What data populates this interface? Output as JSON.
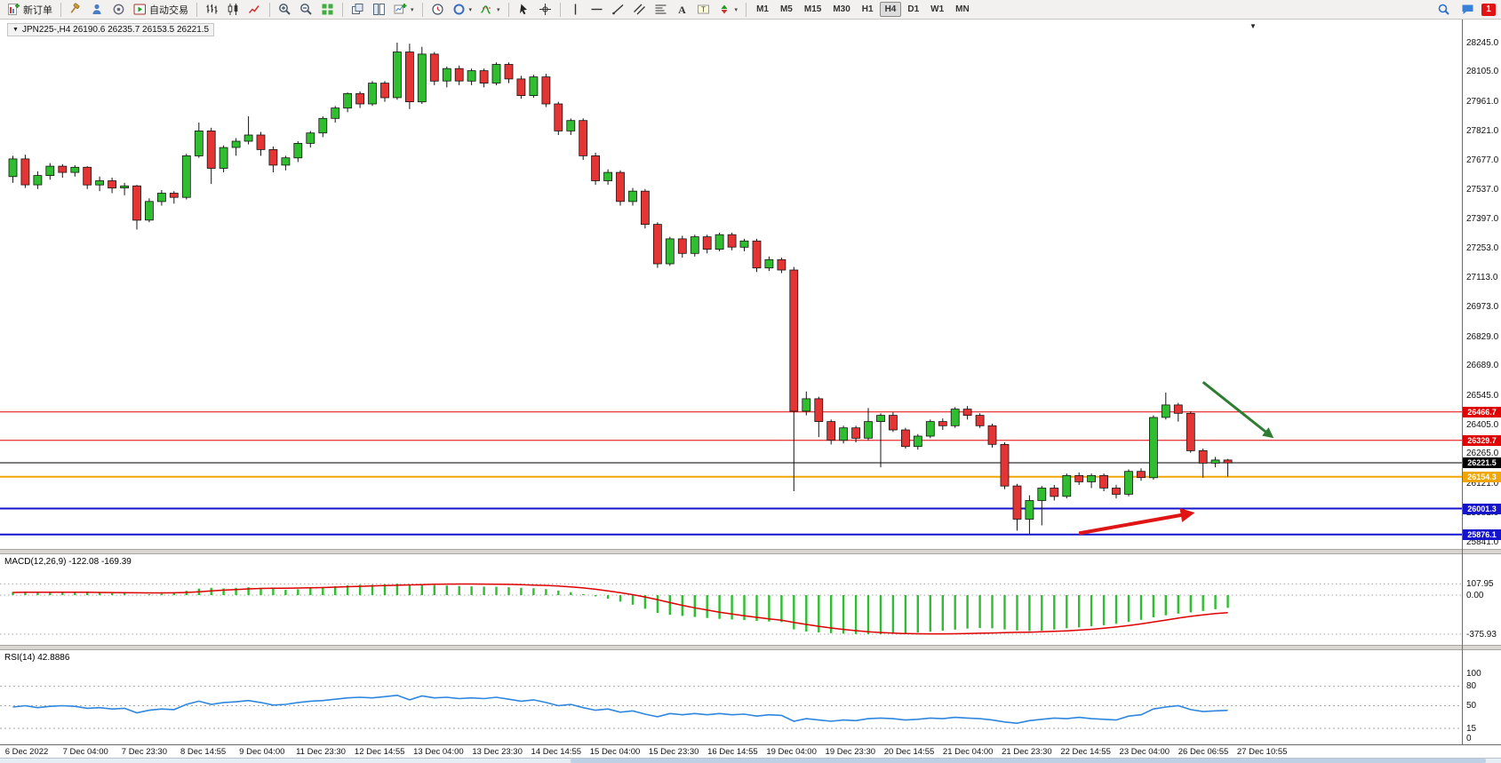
{
  "glyphs": {
    "triangle_down": "▼",
    "caret_down": "▾"
  },
  "toolbar": {
    "buttons": [
      {
        "name": "new-order-button",
        "icon": "new-order-icon",
        "label": "新订单"
      },
      {
        "sep": true
      },
      {
        "name": "strategy-tester-button",
        "icon": "hammer-icon"
      },
      {
        "name": "profile-button",
        "icon": "profile-icon"
      },
      {
        "name": "alert-button",
        "icon": "sound-icon"
      },
      {
        "name": "auto-trading-button",
        "icon": "play-icon",
        "label": "自动交易"
      },
      {
        "sep": true
      },
      {
        "name": "bar-chart-button",
        "icon": "ohlc-bars-icon"
      },
      {
        "name": "candlestick-chart-button",
        "icon": "candlestick-icon"
      },
      {
        "name": "line-chart-button",
        "icon": "line-chart-icon"
      },
      {
        "sep": true
      },
      {
        "name": "zoom-in-button",
        "icon": "zoom-in-icon"
      },
      {
        "name": "zoom-out-button",
        "icon": "zoom-out-icon"
      },
      {
        "name": "tile-windows-button",
        "icon": "tile-windows-icon"
      },
      {
        "sep": true
      },
      {
        "name": "cascade-windows-button",
        "icon": "cascade-icon"
      },
      {
        "name": "tile-vertical-button",
        "icon": "tile-vertical-icon"
      },
      {
        "name": "new-chart-button",
        "icon": "new-chart-icon",
        "dropdown": true
      },
      {
        "sep": true
      },
      {
        "name": "period-clock-button",
        "icon": "clock-icon"
      },
      {
        "name": "quotes-button",
        "icon": "circle-icon",
        "dropdown": true
      },
      {
        "name": "indicators-button",
        "icon": "indicators-icon",
        "dropdown": true
      },
      {
        "sep": true
      },
      {
        "name": "cursor-button",
        "icon": "cursor-icon"
      },
      {
        "name": "crosshair-button",
        "icon": "crosshair-icon"
      },
      {
        "sep": true
      },
      {
        "name": "vertical-line-button",
        "icon": "vertical-line-icon"
      },
      {
        "name": "horizontal-line-button",
        "icon": "horizontal-line-icon"
      },
      {
        "name": "trendline-button",
        "icon": "trendline-icon"
      },
      {
        "name": "channel-button",
        "icon": "channel-icon"
      },
      {
        "name": "fibonacci-button",
        "icon": "fibonacci-icon"
      },
      {
        "name": "text-button",
        "icon": "text-icon"
      },
      {
        "name": "text-label-button",
        "icon": "label-icon"
      },
      {
        "name": "arrows-button",
        "icon": "arrows-icon",
        "dropdown": true
      },
      {
        "sep": true
      }
    ],
    "timeframes": [
      "M1",
      "M5",
      "M15",
      "M30",
      "H1",
      "H4",
      "D1",
      "W1",
      "MN"
    ],
    "active_timeframe": "H4",
    "right_icons": [
      {
        "name": "search-button",
        "icon": "magnifier-icon"
      },
      {
        "name": "chat-button",
        "icon": "chat-icon"
      }
    ],
    "notification_count": "1"
  },
  "chart_header": {
    "title": "JPN225-,H4  26190.6 26235.7 26153.5 26221.5"
  },
  "chart_data": [
    {
      "type": "candlestick",
      "symbol": "JPN225-",
      "timeframe": "H4",
      "ohlc_current": {
        "open": 26190.6,
        "high": 26235.7,
        "low": 26153.5,
        "close": 26221.5
      },
      "ylim": [
        25841,
        28245
      ],
      "up_color": "#2fbe2f",
      "down_color": "#e43434",
      "outline_color": "#151515",
      "y_axis_ticks": [
        "28245.0",
        "28105.0",
        "27961.0",
        "27821.0",
        "27677.0",
        "27537.0",
        "27397.0",
        "27253.0",
        "27113.0",
        "26973.0",
        "26829.0",
        "26689.0",
        "26545.0",
        "26405.0",
        "26265.0",
        "26121.0",
        "25981.0",
        "25841.0"
      ],
      "x_axis_labels": [
        "6 Dec 2022",
        "7 Dec 04:00",
        "7 Dec 23:30",
        "8 Dec 14:55",
        "9 Dec 04:00",
        "11 Dec 23:30",
        "12 Dec 14:55",
        "13 Dec 04:00",
        "13 Dec 23:30",
        "14 Dec 14:55",
        "15 Dec 04:00",
        "15 Dec 23:30",
        "16 Dec 14:55",
        "19 Dec 04:00",
        "19 Dec 23:30",
        "20 Dec 14:55",
        "21 Dec 04:00",
        "21 Dec 23:30",
        "22 Dec 14:55",
        "23 Dec 04:00",
        "26 Dec 06:55",
        "27 Dec 10:55"
      ],
      "hlines": [
        {
          "price": 26466.7,
          "label": "26466.7",
          "color": "#e00000",
          "width": 1,
          "name": "resistance-line-upper"
        },
        {
          "price": 26329.7,
          "label": "26329.7",
          "color": "#e00000",
          "width": 1,
          "name": "resistance-line-lower"
        },
        {
          "price": 26221.5,
          "label": "26221.5",
          "color": "#000000",
          "width": 1,
          "name": "bid-price-line"
        },
        {
          "price": 26154.3,
          "label": "26154.3",
          "color": "#f0a500",
          "width": 2,
          "name": "support-line-orange"
        },
        {
          "price": 26001.3,
          "label": "26001.3",
          "color": "#1414cc",
          "width": 2,
          "name": "support-line-blue-upper"
        },
        {
          "price": 25876.1,
          "label": "25876.1",
          "color": "#1414cc",
          "width": 2,
          "name": "support-line-blue-lower"
        }
      ],
      "annotations": [
        {
          "name": "green-down-arrow",
          "from_index": 96,
          "from_price": 26610,
          "to_index": 101.5,
          "to_price": 26350,
          "color": "#2e7d32",
          "width": 3
        },
        {
          "name": "red-up-arrow",
          "from_index": 86,
          "from_price": 25882,
          "to_index": 95,
          "to_price": 25978,
          "color": "#e01414",
          "width": 4
        }
      ],
      "candles": [
        [
          27600,
          27700,
          27570,
          27685
        ],
        [
          27685,
          27705,
          27545,
          27560
        ],
        [
          27560,
          27625,
          27540,
          27605
        ],
        [
          27605,
          27665,
          27585,
          27650
        ],
        [
          27650,
          27660,
          27595,
          27620
        ],
        [
          27620,
          27655,
          27600,
          27645
        ],
        [
          27645,
          27650,
          27540,
          27560
        ],
        [
          27560,
          27600,
          27530,
          27580
        ],
        [
          27580,
          27595,
          27520,
          27545
        ],
        [
          27545,
          27570,
          27510,
          27555
        ],
        [
          27555,
          27560,
          27345,
          27390
        ],
        [
          27390,
          27495,
          27380,
          27480
        ],
        [
          27480,
          27535,
          27460,
          27520
        ],
        [
          27520,
          27530,
          27470,
          27500
        ],
        [
          27500,
          27710,
          27490,
          27700
        ],
        [
          27700,
          27860,
          27690,
          27820
        ],
        [
          27820,
          27835,
          27565,
          27640
        ],
        [
          27640,
          27750,
          27620,
          27740
        ],
        [
          27740,
          27785,
          27700,
          27770
        ],
        [
          27770,
          27890,
          27755,
          27800
        ],
        [
          27800,
          27815,
          27700,
          27730
        ],
        [
          27730,
          27745,
          27620,
          27655
        ],
        [
          27655,
          27700,
          27630,
          27690
        ],
        [
          27690,
          27770,
          27670,
          27760
        ],
        [
          27760,
          27820,
          27740,
          27810
        ],
        [
          27810,
          27890,
          27790,
          27880
        ],
        [
          27880,
          27940,
          27860,
          27930
        ],
        [
          27930,
          28005,
          27910,
          28000
        ],
        [
          28000,
          28010,
          27930,
          27950
        ],
        [
          27950,
          28060,
          27940,
          28050
        ],
        [
          28050,
          28060,
          27960,
          27980
        ],
        [
          27980,
          28245,
          27970,
          28200
        ],
        [
          28200,
          28240,
          27925,
          27960
        ],
        [
          27960,
          28225,
          27950,
          28190
        ],
        [
          28190,
          28200,
          28040,
          28060
        ],
        [
          28060,
          28130,
          28030,
          28120
        ],
        [
          28120,
          28135,
          28040,
          28060
        ],
        [
          28060,
          28120,
          28040,
          28110
        ],
        [
          28110,
          28120,
          28030,
          28050
        ],
        [
          28050,
          28150,
          28040,
          28140
        ],
        [
          28140,
          28150,
          28050,
          28070
        ],
        [
          28070,
          28085,
          27975,
          27990
        ],
        [
          27990,
          28090,
          27980,
          28080
        ],
        [
          28080,
          28095,
          27935,
          27950
        ],
        [
          27950,
          27960,
          27800,
          27820
        ],
        [
          27820,
          27880,
          27800,
          27870
        ],
        [
          27870,
          27880,
          27680,
          27700
        ],
        [
          27700,
          27715,
          27560,
          27580
        ],
        [
          27580,
          27635,
          27560,
          27620
        ],
        [
          27620,
          27630,
          27460,
          27480
        ],
        [
          27480,
          27545,
          27460,
          27530
        ],
        [
          27530,
          27540,
          27350,
          27370
        ],
        [
          27370,
          27380,
          27160,
          27180
        ],
        [
          27180,
          27310,
          27170,
          27300
        ],
        [
          27300,
          27315,
          27210,
          27230
        ],
        [
          27230,
          27320,
          27215,
          27310
        ],
        [
          27310,
          27320,
          27230,
          27250
        ],
        [
          27250,
          27330,
          27240,
          27320
        ],
        [
          27320,
          27330,
          27245,
          27260
        ],
        [
          27260,
          27300,
          27240,
          27290
        ],
        [
          27290,
          27300,
          27140,
          27160
        ],
        [
          27160,
          27215,
          27145,
          27200
        ],
        [
          27200,
          27210,
          27135,
          27150
        ],
        [
          27150,
          27165,
          26085,
          26470
        ],
        [
          26470,
          26565,
          26450,
          26530
        ],
        [
          26530,
          26540,
          26345,
          26420
        ],
        [
          26420,
          26430,
          26310,
          26330
        ],
        [
          26330,
          26400,
          26315,
          26390
        ],
        [
          26390,
          26400,
          26320,
          26340
        ],
        [
          26340,
          26485,
          26330,
          26420
        ],
        [
          26420,
          26460,
          26200,
          26450
        ],
        [
          26450,
          26465,
          26370,
          26380
        ],
        [
          26380,
          26390,
          26290,
          26300
        ],
        [
          26300,
          26360,
          26285,
          26350
        ],
        [
          26350,
          26430,
          26340,
          26420
        ],
        [
          26420,
          26435,
          26380,
          26400
        ],
        [
          26400,
          26490,
          26390,
          26480
        ],
        [
          26480,
          26495,
          26430,
          26450
        ],
        [
          26450,
          26460,
          26390,
          26400
        ],
        [
          26400,
          26410,
          26295,
          26310
        ],
        [
          26310,
          26320,
          26095,
          26110
        ],
        [
          26110,
          26120,
          25895,
          25950
        ],
        [
          25950,
          26065,
          25880,
          26040
        ],
        [
          26040,
          26110,
          25920,
          26100
        ],
        [
          26100,
          26115,
          26040,
          26060
        ],
        [
          26060,
          26170,
          26050,
          26160
        ],
        [
          26160,
          26175,
          26115,
          26130
        ],
        [
          26130,
          26170,
          26100,
          26160
        ],
        [
          26160,
          26170,
          26085,
          26100
        ],
        [
          26100,
          26115,
          26050,
          26070
        ],
        [
          26070,
          26190,
          26060,
          26180
        ],
        [
          26180,
          26195,
          26135,
          26150
        ],
        [
          26150,
          26450,
          26140,
          26440
        ],
        [
          26440,
          26560,
          26430,
          26500
        ],
        [
          26500,
          26510,
          26420,
          26460
        ],
        [
          26460,
          26470,
          26270,
          26280
        ],
        [
          26280,
          26290,
          26150,
          26220
        ],
        [
          26220,
          26250,
          26200,
          26235
        ],
        [
          26235,
          26240,
          26155,
          26221
        ]
      ]
    },
    {
      "type": "bar",
      "name": "MACD",
      "label": "MACD(12,26,9) -122.08 -169.39",
      "bar_color": "#2fbe2f",
      "signal_color": "#e00000",
      "y_ticks": [
        {
          "value": 107.95,
          "label": "107.95"
        },
        {
          "value": 0,
          "label": "0.00"
        },
        {
          "value": -375.93,
          "label": "-375.93"
        }
      ],
      "values": [
        30,
        34,
        30,
        28,
        32,
        30,
        24,
        22,
        20,
        18,
        4,
        8,
        14,
        20,
        42,
        62,
        70,
        64,
        70,
        76,
        70,
        60,
        50,
        56,
        64,
        76,
        84,
        94,
        100,
        100,
        104,
        110,
        100,
        106,
        96,
        92,
        88,
        84,
        82,
        80,
        76,
        70,
        66,
        58,
        44,
        28,
        10,
        -12,
        -34,
        -62,
        -92,
        -132,
        -172,
        -190,
        -200,
        -210,
        -220,
        -228,
        -234,
        -240,
        -248,
        -254,
        -260,
        -330,
        -350,
        -360,
        -366,
        -370,
        -374,
        -376,
        -375,
        -370,
        -366,
        -360,
        -352,
        -342,
        -332,
        -322,
        -316,
        -320,
        -330,
        -340,
        -346,
        -342,
        -332,
        -320,
        -310,
        -300,
        -290,
        -276,
        -258,
        -238,
        -214,
        -194,
        -178,
        -166,
        -152,
        -136,
        -122
      ],
      "signal": [
        26,
        27,
        27,
        27,
        28,
        28,
        27,
        26,
        25,
        24,
        22,
        21,
        21,
        22,
        26,
        32,
        40,
        48,
        54,
        60,
        64,
        66,
        67,
        68,
        70,
        73,
        77,
        81,
        85,
        89,
        92,
        95,
        98,
        101,
        104,
        106,
        107,
        107,
        106,
        105,
        103,
        100,
        97,
        93,
        87,
        79,
        69,
        56,
        41,
        24,
        4,
        -18,
        -44,
        -72,
        -98,
        -122,
        -144,
        -164,
        -182,
        -198,
        -214,
        -228,
        -242,
        -262,
        -282,
        -300,
        -316,
        -330,
        -342,
        -352,
        -360,
        -366,
        -370,
        -372,
        -373,
        -373,
        -372,
        -370,
        -367,
        -364,
        -361,
        -358,
        -356,
        -353,
        -349,
        -344,
        -337,
        -329,
        -319,
        -307,
        -293,
        -277,
        -259,
        -240,
        -221,
        -204,
        -190,
        -178,
        -169
      ]
    },
    {
      "type": "line",
      "name": "RSI",
      "label": "RSI(14) 42.8886",
      "line_color": "#2e86de",
      "levels": [
        80,
        50,
        15
      ],
      "y_ticks": [
        {
          "value": 100,
          "label": "100"
        },
        {
          "value": 80,
          "label": "80"
        },
        {
          "value": 50,
          "label": "50"
        },
        {
          "value": 15,
          "label": "15"
        },
        {
          "value": 0,
          "label": "0"
        }
      ],
      "values": [
        48,
        50,
        47,
        49,
        50,
        49,
        46,
        47,
        45,
        46,
        39,
        43,
        45,
        44,
        52,
        57,
        52,
        55,
        56,
        58,
        55,
        51,
        52,
        55,
        57,
        58,
        60,
        62,
        63,
        62,
        64,
        66,
        59,
        65,
        62,
        63,
        61,
        62,
        61,
        63,
        60,
        57,
        59,
        55,
        50,
        52,
        47,
        43,
        45,
        40,
        42,
        37,
        33,
        38,
        36,
        38,
        36,
        38,
        36,
        37,
        34,
        36,
        35,
        26,
        30,
        28,
        26,
        28,
        27,
        30,
        31,
        30,
        28,
        29,
        31,
        30,
        32,
        31,
        30,
        28,
        25,
        23,
        27,
        29,
        31,
        30,
        32,
        30,
        29,
        28,
        34,
        36,
        45,
        48,
        50,
        44,
        41,
        42,
        42.9
      ]
    }
  ]
}
